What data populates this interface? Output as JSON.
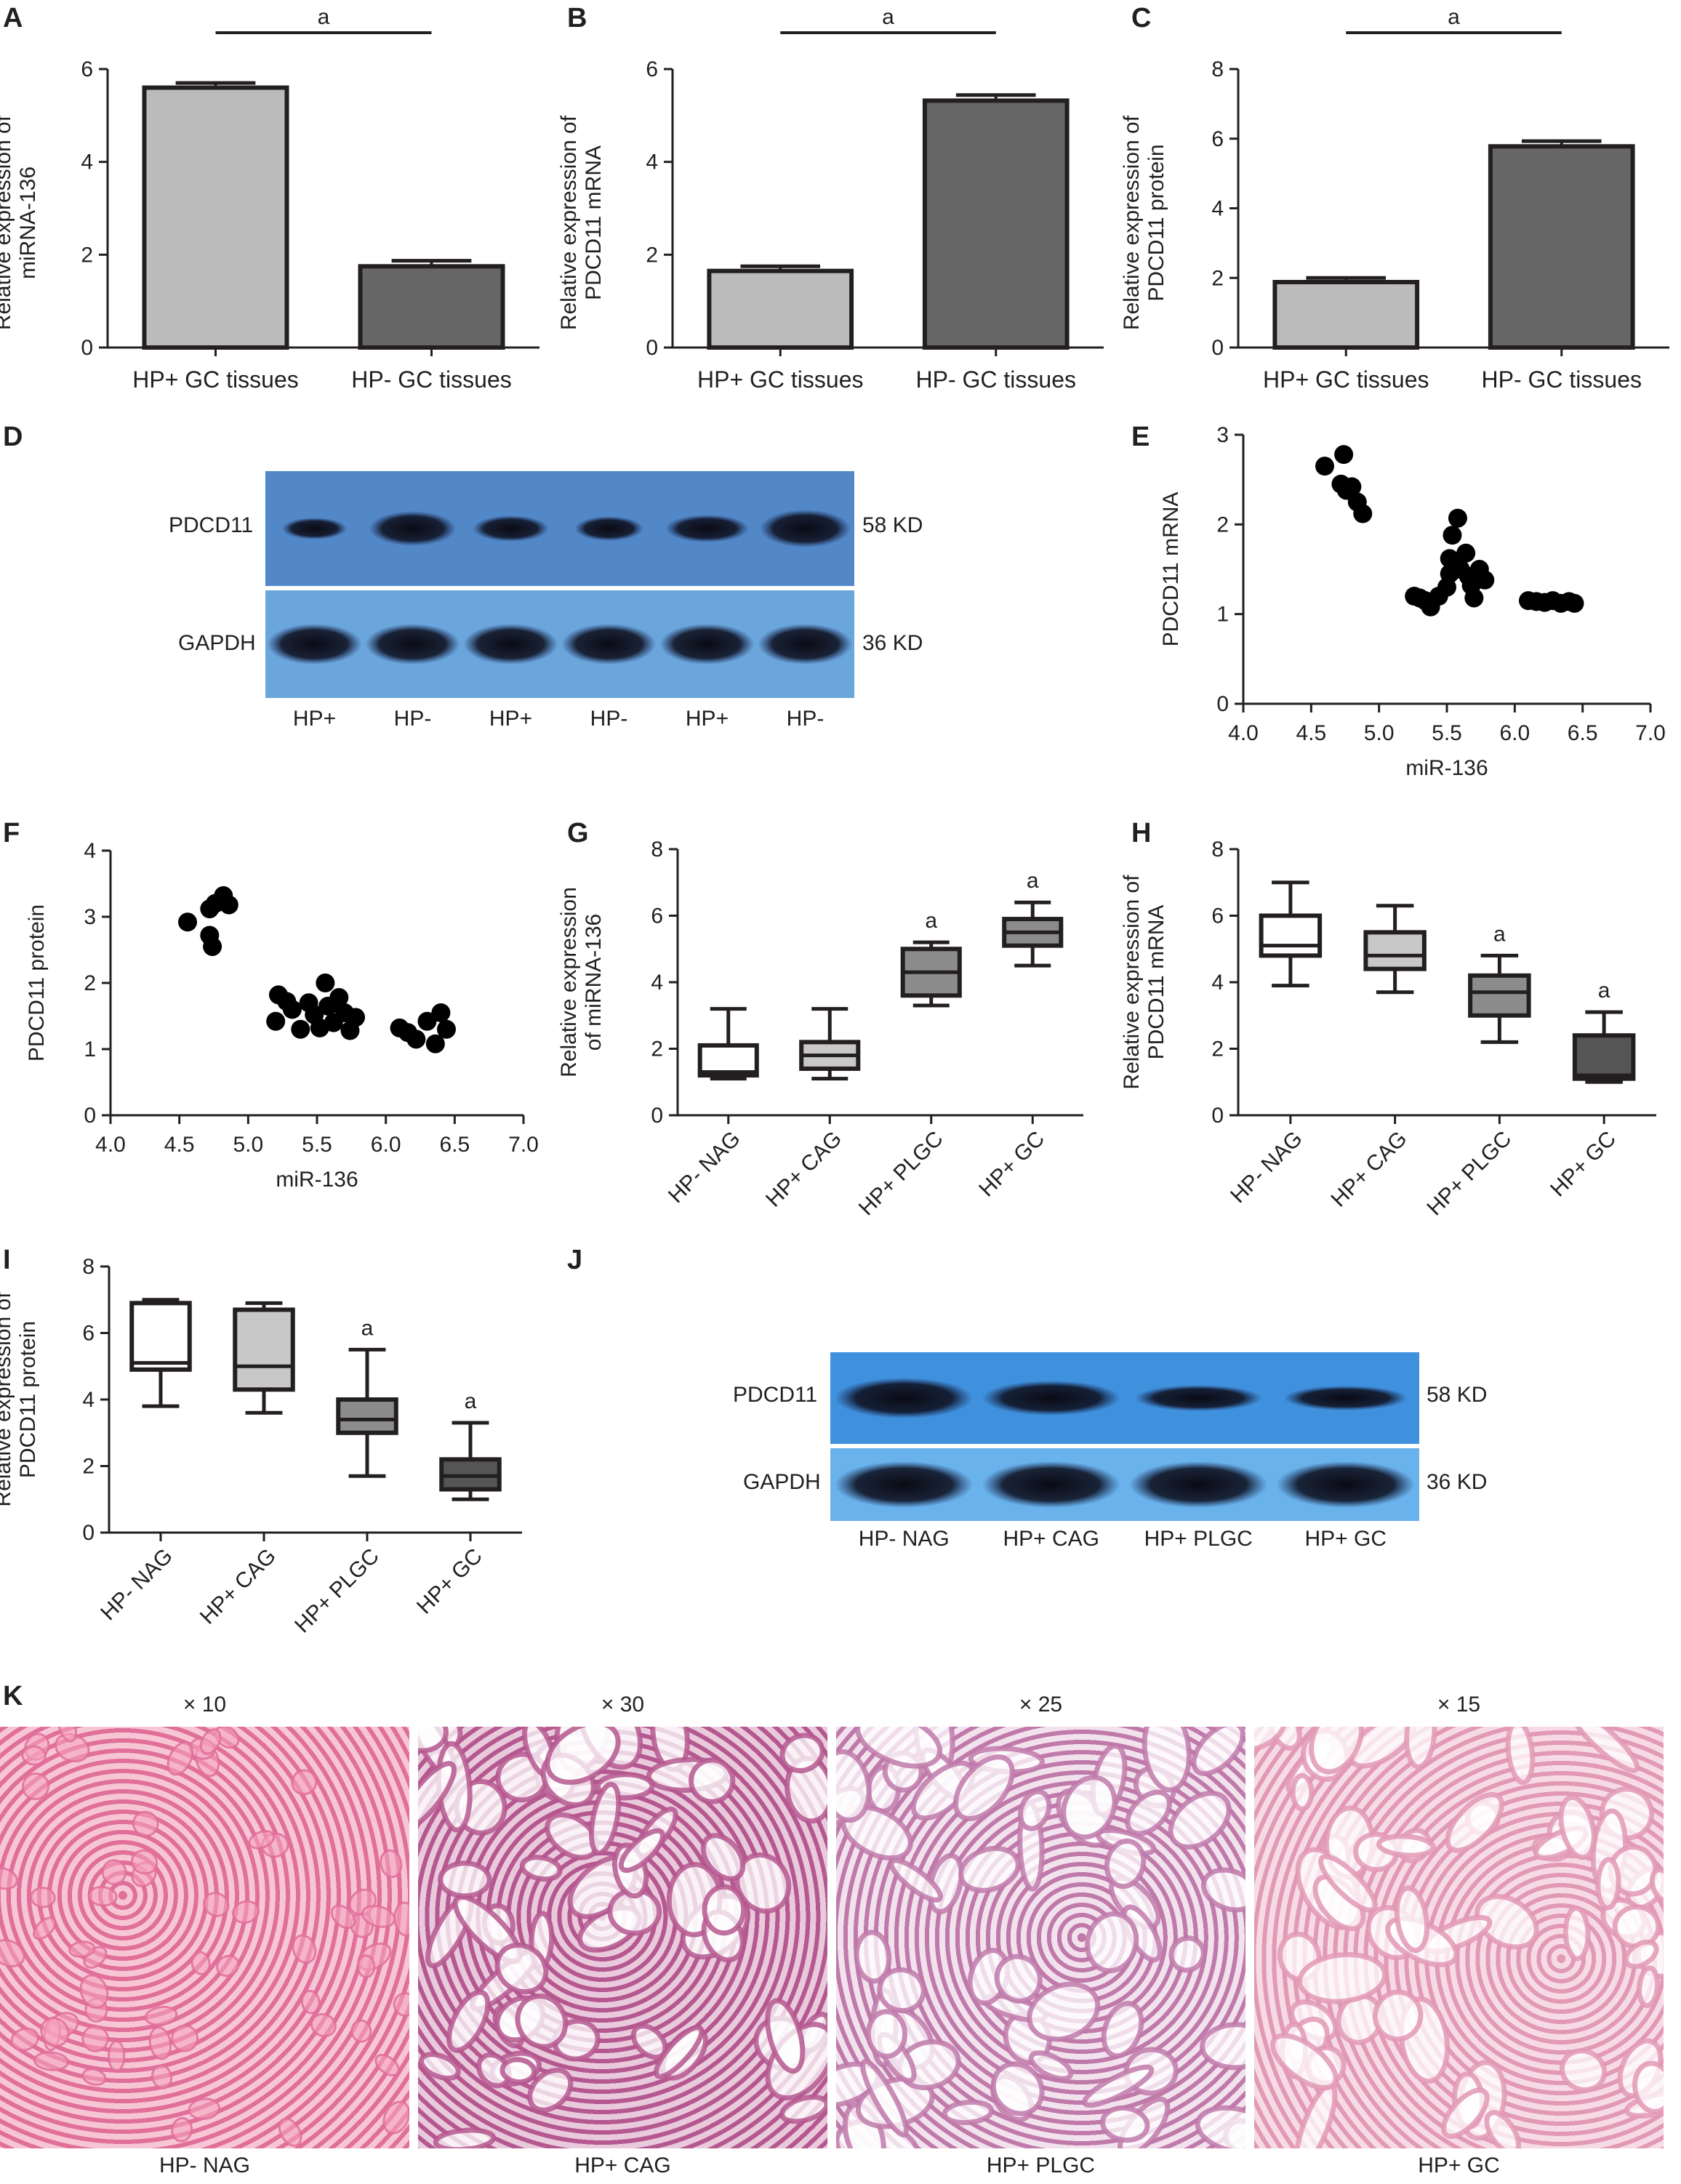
{
  "panels": {
    "A": "A",
    "B": "B",
    "C": "C",
    "D": "D",
    "E": "E",
    "F": "F",
    "G": "G",
    "H": "H",
    "I": "I",
    "J": "J",
    "K": "K"
  },
  "sig_mark": "a",
  "chart_data": [
    {
      "id": "A",
      "type": "bar",
      "categories": [
        "HP+ GC tissues",
        "HP- GC tissues"
      ],
      "values": [
        5.6,
        1.75
      ],
      "errors": [
        0.1,
        0.12
      ],
      "colors": [
        "#bbbbbb",
        "#666666"
      ],
      "ylabel_lines": [
        "Relative expression of",
        "miRNA-136"
      ],
      "ylim": [
        0,
        6
      ],
      "yticks": [
        0,
        2,
        4,
        6
      ]
    },
    {
      "id": "B",
      "type": "bar",
      "categories": [
        "HP+ GC tissues",
        "HP- GC tissues"
      ],
      "values": [
        1.65,
        5.32
      ],
      "errors": [
        0.1,
        0.12
      ],
      "colors": [
        "#bbbbbb",
        "#666666"
      ],
      "ylabel_lines": [
        "Relative expression of",
        "PDCD11 mRNA"
      ],
      "ylim": [
        0,
        6
      ],
      "yticks": [
        0,
        2,
        4,
        6
      ]
    },
    {
      "id": "C",
      "type": "bar",
      "categories": [
        "HP+ GC tissues",
        "HP- GC tissues"
      ],
      "values": [
        1.88,
        5.78
      ],
      "errors": [
        0.12,
        0.15
      ],
      "colors": [
        "#bbbbbb",
        "#666666"
      ],
      "ylabel_lines": [
        "Relative expression of",
        "PDCD11 protein"
      ],
      "ylim": [
        0,
        8
      ],
      "yticks": [
        0,
        2,
        4,
        6,
        8
      ]
    },
    {
      "id": "E",
      "type": "scatter",
      "xlabel": "miR-136",
      "ylabel": "PDCD11 mRNA",
      "xlim": [
        4.0,
        7.0
      ],
      "ylim": [
        0,
        3
      ],
      "xticks": [
        "4.0",
        "4.5",
        "5.0",
        "5.5",
        "6.0",
        "6.5",
        "7.0"
      ],
      "yticks": [
        0,
        1,
        2,
        3
      ],
      "points": [
        [
          4.6,
          2.65
        ],
        [
          4.74,
          2.78
        ],
        [
          4.72,
          2.45
        ],
        [
          4.8,
          2.42
        ],
        [
          4.76,
          2.38
        ],
        [
          4.84,
          2.25
        ],
        [
          4.88,
          2.12
        ],
        [
          5.26,
          1.2
        ],
        [
          5.3,
          1.18
        ],
        [
          5.34,
          1.15
        ],
        [
          5.38,
          1.08
        ],
        [
          5.44,
          1.2
        ],
        [
          5.52,
          1.45
        ],
        [
          5.52,
          1.62
        ],
        [
          5.54,
          1.88
        ],
        [
          5.58,
          2.07
        ],
        [
          5.6,
          1.5
        ],
        [
          5.64,
          1.68
        ],
        [
          5.66,
          1.42
        ],
        [
          5.68,
          1.32
        ],
        [
          5.7,
          1.18
        ],
        [
          5.74,
          1.5
        ],
        [
          5.78,
          1.38
        ],
        [
          5.5,
          1.3
        ],
        [
          6.1,
          1.15
        ],
        [
          6.16,
          1.14
        ],
        [
          6.22,
          1.13
        ],
        [
          6.28,
          1.15
        ],
        [
          6.34,
          1.12
        ],
        [
          6.4,
          1.14
        ],
        [
          6.44,
          1.12
        ]
      ]
    },
    {
      "id": "F",
      "type": "scatter",
      "xlabel": "miR-136",
      "ylabel": "PDCD11 protein",
      "xlim": [
        4.0,
        7.0
      ],
      "ylim": [
        0,
        4
      ],
      "xticks": [
        "4.0",
        "4.5",
        "5.0",
        "5.5",
        "6.0",
        "6.5",
        "7.0"
      ],
      "yticks": [
        0,
        1,
        2,
        3,
        4
      ],
      "points": [
        [
          4.56,
          2.92
        ],
        [
          4.72,
          3.12
        ],
        [
          4.76,
          3.2
        ],
        [
          4.82,
          3.32
        ],
        [
          4.86,
          3.18
        ],
        [
          4.72,
          2.72
        ],
        [
          4.74,
          2.55
        ],
        [
          5.22,
          1.82
        ],
        [
          5.28,
          1.72
        ],
        [
          5.2,
          1.42
        ],
        [
          5.32,
          1.6
        ],
        [
          5.38,
          1.3
        ],
        [
          5.44,
          1.7
        ],
        [
          5.48,
          1.52
        ],
        [
          5.52,
          1.32
        ],
        [
          5.56,
          2.0
        ],
        [
          5.58,
          1.65
        ],
        [
          5.62,
          1.4
        ],
        [
          5.66,
          1.78
        ],
        [
          5.7,
          1.55
        ],
        [
          5.74,
          1.28
        ],
        [
          5.78,
          1.48
        ],
        [
          6.1,
          1.32
        ],
        [
          6.16,
          1.25
        ],
        [
          6.22,
          1.15
        ],
        [
          6.3,
          1.42
        ],
        [
          6.36,
          1.08
        ],
        [
          6.4,
          1.55
        ],
        [
          6.44,
          1.3
        ]
      ]
    },
    {
      "id": "G",
      "type": "box",
      "categories": [
        "HP- NAG",
        "HP+ CAG",
        "HP+ PLGC",
        "HP+ GC"
      ],
      "ylabel_lines": [
        "Relative expression",
        "of miRNA-136"
      ],
      "ylim": [
        0,
        8
      ],
      "yticks": [
        0,
        2,
        4,
        6,
        8
      ],
      "boxes": [
        {
          "min": 1.1,
          "q1": 1.2,
          "median": 1.3,
          "q3": 2.1,
          "max": 3.2,
          "fill": "#ffffff",
          "sig": false
        },
        {
          "min": 1.1,
          "q1": 1.4,
          "median": 1.8,
          "q3": 2.2,
          "max": 3.2,
          "fill": "#c8c8c8",
          "sig": false
        },
        {
          "min": 3.3,
          "q1": 3.6,
          "median": 4.3,
          "q3": 5.0,
          "max": 5.2,
          "fill": "#8c8c8c",
          "sig": true
        },
        {
          "min": 4.5,
          "q1": 5.1,
          "median": 5.5,
          "q3": 5.9,
          "max": 6.4,
          "fill": "#8c8c8c",
          "sig": true
        }
      ]
    },
    {
      "id": "H",
      "type": "box",
      "categories": [
        "HP- NAG",
        "HP+ CAG",
        "HP+ PLGC",
        "HP+ GC"
      ],
      "ylabel_lines": [
        "Relative expression of",
        "PDCD11 mRNA"
      ],
      "ylim": [
        0,
        8
      ],
      "yticks": [
        0,
        2,
        4,
        6,
        8
      ],
      "boxes": [
        {
          "min": 3.9,
          "q1": 4.8,
          "median": 5.1,
          "q3": 6.0,
          "max": 7.0,
          "fill": "#ffffff",
          "sig": false
        },
        {
          "min": 3.7,
          "q1": 4.4,
          "median": 4.8,
          "q3": 5.5,
          "max": 6.3,
          "fill": "#c8c8c8",
          "sig": false
        },
        {
          "min": 2.2,
          "q1": 3.0,
          "median": 3.7,
          "q3": 4.2,
          "max": 4.8,
          "fill": "#8c8c8c",
          "sig": true
        },
        {
          "min": 1.0,
          "q1": 1.1,
          "median": 1.2,
          "q3": 2.4,
          "max": 3.1,
          "fill": "#555555",
          "sig": true
        }
      ]
    },
    {
      "id": "I",
      "type": "box",
      "categories": [
        "HP- NAG",
        "HP+ CAG",
        "HP+ PLGC",
        "HP+ GC"
      ],
      "ylabel_lines": [
        "Relative expression of",
        "PDCD11 protein"
      ],
      "ylim": [
        0,
        8
      ],
      "yticks": [
        0,
        2,
        4,
        6,
        8
      ],
      "boxes": [
        {
          "min": 3.8,
          "q1": 4.9,
          "median": 5.1,
          "q3": 6.9,
          "max": 7.0,
          "fill": "#ffffff",
          "sig": false
        },
        {
          "min": 3.6,
          "q1": 4.3,
          "median": 5.0,
          "q3": 6.7,
          "max": 6.9,
          "fill": "#c8c8c8",
          "sig": false
        },
        {
          "min": 1.7,
          "q1": 3.0,
          "median": 3.4,
          "q3": 4.0,
          "max": 5.5,
          "fill": "#8c8c8c",
          "sig": true
        },
        {
          "min": 1.0,
          "q1": 1.3,
          "median": 1.7,
          "q3": 2.2,
          "max": 3.3,
          "fill": "#555555",
          "sig": true
        }
      ]
    }
  ],
  "blot_D": {
    "row1": "PDCD11",
    "row2": "GAPDH",
    "kd1": "58 KD",
    "kd2": "36 KD",
    "lanes": [
      "HP+",
      "HP-",
      "HP+",
      "HP-",
      "HP+",
      "HP-"
    ]
  },
  "blot_J": {
    "row1": "PDCD11",
    "row2": "GAPDH",
    "kd1": "58 KD",
    "kd2": "36 KD",
    "lanes": [
      "HP- NAG",
      "HP+ CAG",
      "HP+ PLGC",
      "HP+ GC"
    ]
  },
  "histology": [
    {
      "mag": "× 10",
      "label": "HP- NAG",
      "color": "#e06f9a",
      "color2": "#f7c6d5"
    },
    {
      "mag": "× 30",
      "label": "HP+ CAG",
      "color": "#b5588f",
      "color2": "#e9c9dc"
    },
    {
      "mag": "× 25",
      "label": "HP+ PLGC",
      "color": "#c07aaa",
      "color2": "#f2e2ee"
    },
    {
      "mag": "× 15",
      "label": "HP+ GC",
      "color": "#e299b5",
      "color2": "#f6dbe5"
    }
  ]
}
